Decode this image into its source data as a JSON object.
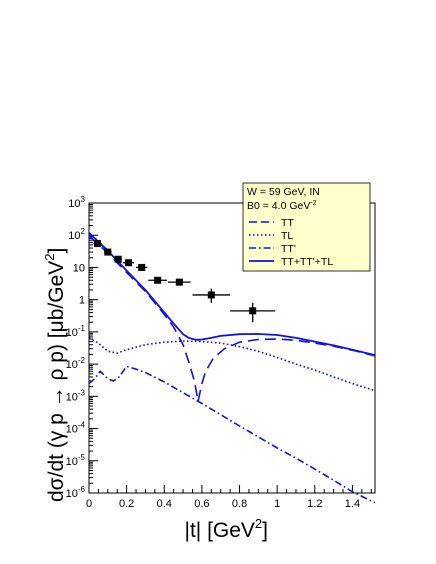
{
  "chart_data": {
    "type": "scatter",
    "xlabel": "|t| [GeV",
    "xlabel_sup": "2",
    "xlabel_end": "]",
    "ylabel": "dσ/dt (γ p → ρ p) [μb/GeV",
    "ylabel_sup": "2",
    "ylabel_end": "]",
    "xlim": [
      0,
      1.52
    ],
    "ylim_log10": [
      -6,
      3
    ],
    "y_scale": "log",
    "grid": false,
    "x_ticks": [
      0,
      0.2,
      0.4,
      0.6,
      0.8,
      1.0,
      1.2,
      1.4
    ],
    "x_tick_labels": [
      "0",
      "0.2",
      "0.4",
      "0.6",
      "0.8",
      "1",
      "1.2",
      "1.4"
    ],
    "y_tick_labels": [
      {
        "base": "10",
        "exp": "-6",
        "log": -6
      },
      {
        "base": "10",
        "exp": "-5",
        "log": -5
      },
      {
        "base": "10",
        "exp": "-4",
        "log": -4
      },
      {
        "base": "10",
        "exp": "-3",
        "log": -3
      },
      {
        "base": "10",
        "exp": "-2",
        "log": -2
      },
      {
        "base": "10",
        "exp": "-1",
        "log": -1
      },
      {
        "base": "1",
        "exp": "",
        "log": 0
      },
      {
        "base": "10",
        "exp": "",
        "log": 1
      },
      {
        "base": "10",
        "exp": "2",
        "log": 2
      },
      {
        "base": "10",
        "exp": "3",
        "log": 3
      }
    ],
    "legend": {
      "placement": "top-right",
      "header_lines": [
        {
          "text": "W = 59 GeV, IN",
          "sup": ""
        },
        {
          "text": "B0 = 4.0 GeV",
          "sup": "-2"
        }
      ],
      "entries": [
        {
          "label": "TT",
          "style": "dashed"
        },
        {
          "label": "TL",
          "style": "dotted"
        },
        {
          "label": "TT'",
          "style": "dashdot"
        },
        {
          "label": "TT+TT'+TL",
          "style": "solid"
        }
      ]
    },
    "colors": {
      "curves": "#1111dd",
      "data": "#000000",
      "legend_bg": "#ffffcc"
    },
    "data_points": [
      {
        "x": 0.045,
        "y": 55,
        "xerr": 0.02,
        "yerr_lo": 8,
        "yerr_hi": 8
      },
      {
        "x": 0.1,
        "y": 30,
        "xerr": 0.02,
        "yerr_lo": 4,
        "yerr_hi": 4
      },
      {
        "x": 0.155,
        "y": 18,
        "xerr": 0.02,
        "yerr_lo": 3,
        "yerr_hi": 3
      },
      {
        "x": 0.21,
        "y": 14,
        "xerr": 0.03,
        "yerr_lo": 2.5,
        "yerr_hi": 2.5
      },
      {
        "x": 0.28,
        "y": 10,
        "xerr": 0.03,
        "yerr_lo": 2,
        "yerr_hi": 2
      },
      {
        "x": 0.365,
        "y": 4,
        "xerr": 0.05,
        "yerr_lo": 0.8,
        "yerr_hi": 0.8
      },
      {
        "x": 0.48,
        "y": 3.5,
        "xerr": 0.06,
        "yerr_lo": 0.7,
        "yerr_hi": 0.7
      },
      {
        "x": 0.65,
        "y": 1.4,
        "xerr": 0.1,
        "yerr_lo": 0.6,
        "yerr_hi": 0.8
      },
      {
        "x": 0.87,
        "y": 0.45,
        "xerr": 0.12,
        "yerr_lo": 0.25,
        "yerr_hi": 0.35
      }
    ],
    "series": [
      {
        "style": "dashed",
        "x": [
          0.0,
          0.1,
          0.2,
          0.3,
          0.4,
          0.45,
          0.5,
          0.53,
          0.56,
          0.58,
          0.6,
          0.62,
          0.66,
          0.72,
          0.8,
          0.9,
          1.0,
          1.1,
          1.2,
          1.3,
          1.4,
          1.52
        ],
        "y": [
          95,
          28,
          7,
          1.8,
          0.35,
          0.14,
          0.04,
          0.012,
          0.003,
          0.0007,
          0.0025,
          0.006,
          0.015,
          0.03,
          0.048,
          0.058,
          0.06,
          0.055,
          0.045,
          0.036,
          0.027,
          0.018
        ]
      },
      {
        "style": "dotted",
        "x": [
          0.0,
          0.05,
          0.1,
          0.15,
          0.2,
          0.3,
          0.4,
          0.5,
          0.6,
          0.7,
          0.8,
          0.9,
          1.0,
          1.1,
          1.2,
          1.3,
          1.4,
          1.52
        ],
        "y": [
          0.065,
          0.045,
          0.025,
          0.022,
          0.028,
          0.04,
          0.048,
          0.052,
          0.05,
          0.045,
          0.035,
          0.025,
          0.016,
          0.01,
          0.0065,
          0.004,
          0.0025,
          0.0015
        ]
      },
      {
        "style": "dashdot",
        "x": [
          0.0,
          0.03,
          0.06,
          0.1,
          0.13,
          0.16,
          0.2,
          0.25,
          0.3,
          0.4,
          0.5,
          0.6,
          0.7,
          0.8,
          0.9,
          1.0,
          1.1,
          1.2,
          1.3,
          1.4,
          1.52
        ],
        "y": [
          0.0025,
          0.0035,
          0.006,
          0.0035,
          0.003,
          0.004,
          0.0085,
          0.007,
          0.0055,
          0.0028,
          0.0013,
          0.0006,
          0.00027,
          0.00012,
          5.5e-05,
          2.5e-05,
          1.2e-05,
          5.5e-06,
          2.5e-06,
          1.1e-06,
          5e-07
        ]
      },
      {
        "style": "solid",
        "x": [
          0.0,
          0.1,
          0.2,
          0.3,
          0.4,
          0.45,
          0.5,
          0.53,
          0.56,
          0.58,
          0.6,
          0.65,
          0.7,
          0.8,
          0.9,
          1.0,
          1.1,
          1.2,
          1.3,
          1.4,
          1.52
        ],
        "y": [
          120,
          33,
          8,
          2,
          0.4,
          0.18,
          0.085,
          0.065,
          0.058,
          0.057,
          0.058,
          0.065,
          0.075,
          0.085,
          0.086,
          0.08,
          0.065,
          0.05,
          0.038,
          0.028,
          0.019
        ]
      }
    ]
  }
}
